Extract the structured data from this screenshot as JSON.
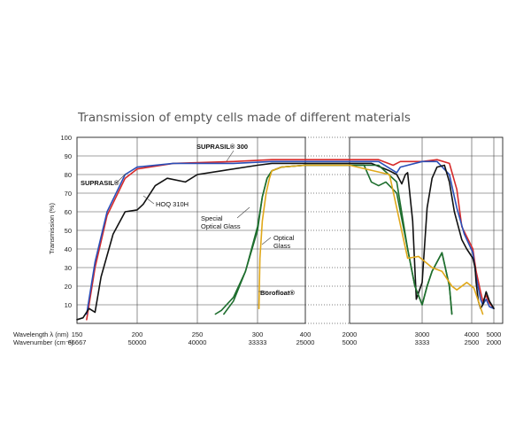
{
  "chart_data": {
    "type": "line",
    "title": "Transmission of empty cells made of different materials",
    "ylabel": "Transmission (%)",
    "ylim": [
      0,
      100
    ],
    "y_ticks": [
      10,
      20,
      30,
      40,
      50,
      60,
      70,
      80,
      90,
      100
    ],
    "x_axis_label_wavelength": "Wavelength  λ (nm)",
    "x_axis_label_wavenumber": "Wavenumber (cm⁻¹)",
    "x_segments": [
      {
        "name": "uv-vis",
        "range_nm": [
          150,
          400
        ]
      },
      {
        "name": "ir",
        "range_nm": [
          2000,
          5000
        ]
      }
    ],
    "x_ticks": [
      {
        "wavelength": "150",
        "wavenumber": "66667"
      },
      {
        "wavelength": "200",
        "wavenumber": "50000"
      },
      {
        "wavelength": "250",
        "wavenumber": "40000"
      },
      {
        "wavelength": "300",
        "wavenumber": "33333"
      },
      {
        "wavelength": "400",
        "wavenumber": "25000"
      },
      {
        "wavelength": "2000",
        "wavenumber": "5000"
      },
      {
        "wavelength": "3000",
        "wavenumber": "3333"
      },
      {
        "wavelength": "4000",
        "wavenumber": "2500"
      },
      {
        "wavelength": "5000",
        "wavenumber": "2000"
      }
    ],
    "annotations": [
      {
        "id": "suprasil300",
        "text": "SUPRASIL® 300"
      },
      {
        "id": "suprasil",
        "text": "SUPRASIL®"
      },
      {
        "id": "hoq",
        "text": "HOQ 310H"
      },
      {
        "id": "special-1",
        "text": "Special"
      },
      {
        "id": "special-2",
        "text": "Optical Glass"
      },
      {
        "id": "optical-1",
        "text": "Optical"
      },
      {
        "id": "optical-2",
        "text": "Glass"
      },
      {
        "id": "borofloat",
        "text": "Borofloat®"
      }
    ],
    "series": [
      {
        "name": "SUPRASIL® 300",
        "color": "#d62a2a",
        "points": [
          [
            158,
            2
          ],
          [
            165,
            30
          ],
          [
            175,
            58
          ],
          [
            190,
            78
          ],
          [
            200,
            83
          ],
          [
            230,
            86
          ],
          [
            280,
            87
          ],
          [
            330,
            88
          ],
          [
            400,
            88
          ],
          [
            2000,
            88
          ],
          [
            2400,
            88
          ],
          [
            2600,
            85
          ],
          [
            2700,
            87
          ],
          [
            3000,
            87
          ],
          [
            3300,
            88
          ],
          [
            3550,
            86
          ],
          [
            3700,
            72
          ],
          [
            3800,
            52
          ],
          [
            4050,
            40
          ],
          [
            4200,
            28
          ],
          [
            4400,
            17
          ],
          [
            4500,
            12
          ],
          [
            4650,
            15
          ],
          [
            4800,
            11
          ],
          [
            5000,
            8
          ]
        ]
      },
      {
        "name": "SUPRASIL®",
        "color": "#2a4fb8",
        "points": [
          [
            158,
            5
          ],
          [
            165,
            33
          ],
          [
            175,
            60
          ],
          [
            190,
            80
          ],
          [
            200,
            84
          ],
          [
            230,
            86
          ],
          [
            280,
            86
          ],
          [
            330,
            87
          ],
          [
            400,
            87
          ],
          [
            2000,
            87
          ],
          [
            2400,
            87
          ],
          [
            2650,
            81
          ],
          [
            2700,
            84
          ],
          [
            3000,
            87
          ],
          [
            3300,
            87
          ],
          [
            3550,
            80
          ],
          [
            3700,
            62
          ],
          [
            3850,
            48
          ],
          [
            4050,
            38
          ],
          [
            4200,
            25
          ],
          [
            4400,
            13
          ],
          [
            4500,
            10
          ],
          [
            4650,
            13
          ],
          [
            4800,
            9
          ],
          [
            5000,
            8
          ]
        ]
      },
      {
        "name": "HOQ 310H",
        "color": "#111111",
        "points": [
          [
            150,
            2
          ],
          [
            155,
            3
          ],
          [
            160,
            8
          ],
          [
            165,
            6
          ],
          [
            170,
            25
          ],
          [
            180,
            48
          ],
          [
            190,
            60
          ],
          [
            200,
            61
          ],
          [
            205,
            64
          ],
          [
            215,
            74
          ],
          [
            225,
            78
          ],
          [
            240,
            76
          ],
          [
            250,
            80
          ],
          [
            270,
            82
          ],
          [
            300,
            85
          ],
          [
            330,
            86
          ],
          [
            400,
            86
          ],
          [
            2000,
            86
          ],
          [
            2300,
            86
          ],
          [
            2550,
            82
          ],
          [
            2650,
            80
          ],
          [
            2720,
            75
          ],
          [
            2770,
            80
          ],
          [
            2800,
            81
          ],
          [
            2870,
            55
          ],
          [
            2920,
            13
          ],
          [
            3000,
            22
          ],
          [
            3100,
            62
          ],
          [
            3200,
            78
          ],
          [
            3300,
            84
          ],
          [
            3450,
            85
          ],
          [
            3550,
            76
          ],
          [
            3650,
            60
          ],
          [
            3800,
            45
          ],
          [
            3900,
            40
          ],
          [
            4050,
            35
          ],
          [
            4150,
            30
          ],
          [
            4200,
            22
          ],
          [
            4300,
            12
          ],
          [
            4400,
            8
          ],
          [
            4500,
            10
          ],
          [
            4650,
            17
          ],
          [
            4800,
            12
          ],
          [
            5000,
            8
          ]
        ]
      },
      {
        "name": "Special Optical Glass",
        "color": "#1e6e2e",
        "points": [
          [
            272,
            5
          ],
          [
            280,
            12
          ],
          [
            290,
            28
          ],
          [
            300,
            52
          ],
          [
            310,
            68
          ],
          [
            320,
            78
          ],
          [
            330,
            82
          ],
          [
            350,
            84
          ],
          [
            400,
            85
          ],
          [
            2000,
            85
          ],
          [
            2200,
            85
          ],
          [
            2300,
            76
          ],
          [
            2400,
            74
          ],
          [
            2500,
            76
          ],
          [
            2650,
            70
          ],
          [
            2800,
            40
          ],
          [
            2900,
            20
          ],
          [
            3000,
            10
          ],
          [
            3100,
            20
          ],
          [
            3200,
            28
          ],
          [
            3400,
            38
          ],
          [
            3550,
            20
          ],
          [
            3600,
            5
          ]
        ]
      },
      {
        "name": "Special Optical Glass (2)",
        "color": "#1e6e2e",
        "points": [
          [
            265,
            5
          ],
          [
            270,
            7
          ],
          [
            280,
            14
          ],
          [
            290,
            28
          ],
          [
            300,
            50
          ],
          [
            310,
            68
          ],
          [
            320,
            78
          ],
          [
            330,
            82
          ],
          [
            350,
            84
          ],
          [
            400,
            85
          ],
          [
            2000,
            85
          ],
          [
            2400,
            85
          ],
          [
            2650,
            76
          ],
          [
            2800,
            40
          ],
          [
            2900,
            20
          ],
          [
            3000,
            10
          ],
          [
            3100,
            20
          ],
          [
            3200,
            28
          ],
          [
            3400,
            38
          ],
          [
            3550,
            20
          ],
          [
            3600,
            5
          ]
        ]
      },
      {
        "name": "Optical Glass",
        "color": "#e0a81a",
        "points": [
          [
            303,
            8
          ],
          [
            305,
            35
          ],
          [
            310,
            55
          ],
          [
            318,
            70
          ],
          [
            325,
            78
          ],
          [
            330,
            82
          ],
          [
            350,
            84
          ],
          [
            400,
            85
          ],
          [
            2000,
            85
          ],
          [
            2550,
            80
          ],
          [
            2800,
            35
          ],
          [
            2950,
            36
          ],
          [
            3200,
            30
          ],
          [
            3400,
            28
          ],
          [
            3600,
            20
          ],
          [
            3700,
            18
          ],
          [
            3900,
            22
          ],
          [
            4100,
            19
          ],
          [
            4300,
            12
          ],
          [
            4500,
            5
          ]
        ]
      }
    ]
  }
}
